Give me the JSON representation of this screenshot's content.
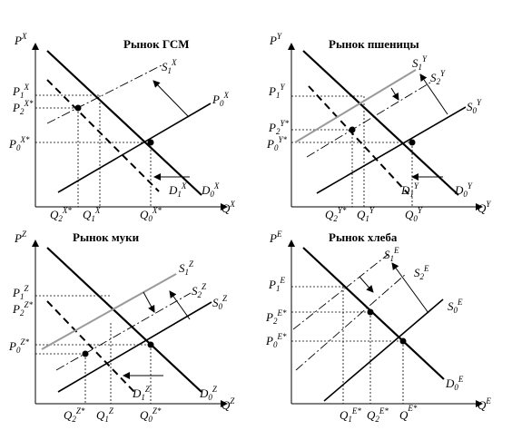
{
  "panels": [
    {
      "id": "x",
      "title": "Рынок ГСМ",
      "price_axis": {
        "text": "P",
        "sup": "X"
      },
      "qty_axis": {
        "text": "Q",
        "sup": "X"
      },
      "price_labels": [
        {
          "text": "P",
          "sub": "1",
          "sup": "X"
        },
        {
          "text": "P",
          "sub": "2",
          "sup": "X*"
        },
        {
          "text": "P",
          "sub": "0",
          "sup": "X*"
        }
      ],
      "qty_labels": [
        {
          "text": "Q",
          "sub": "2",
          "sup": "X*"
        },
        {
          "text": "Q",
          "sub": "1",
          "sup": "X"
        },
        {
          "text": "Q",
          "sub": "0",
          "sup": "X*"
        }
      ],
      "curve_labels": [
        {
          "text": "S",
          "sub": "1",
          "sup": "X"
        },
        {
          "text": "P",
          "sub": "0",
          "sup": "X"
        },
        {
          "text": "D",
          "sub": "1",
          "sup": "X"
        },
        {
          "text": "D",
          "sub": "0",
          "sup": "X"
        }
      ]
    },
    {
      "id": "y",
      "title": "Рынок пшеницы",
      "price_axis": {
        "text": "P",
        "sup": "Y"
      },
      "qty_axis": {
        "text": "Q",
        "sup": "Y"
      },
      "price_labels": [
        {
          "text": "P",
          "sub": "1",
          "sup": "Y"
        },
        {
          "text": "P",
          "sub": "2",
          "sup": "Y*"
        },
        {
          "text": "P",
          "sub": "0",
          "sup": "Y*"
        }
      ],
      "qty_labels": [
        {
          "text": "Q",
          "sub": "2",
          "sup": "Y*"
        },
        {
          "text": "Q",
          "sub": "1",
          "sup": "Y"
        },
        {
          "text": "Q",
          "sub": "0",
          "sup": "Y"
        }
      ],
      "curve_labels": [
        {
          "text": "S",
          "sub": "1",
          "sup": "Y"
        },
        {
          "text": "S",
          "sub": "2",
          "sup": "Y"
        },
        {
          "text": "S",
          "sub": "0",
          "sup": "Y"
        },
        {
          "text": "D",
          "sub": "1",
          "sup": "Y"
        },
        {
          "text": "D",
          "sub": "0",
          "sup": "Y"
        }
      ]
    },
    {
      "id": "z",
      "title": "Рынок муки",
      "price_axis": {
        "text": "P",
        "sup": "Z"
      },
      "qty_axis": {
        "text": "Q",
        "sup": "Z"
      },
      "price_labels": [
        {
          "text": "P",
          "sub": "1",
          "sup": "Z"
        },
        {
          "text": "P",
          "sub": "2",
          "sup": "Z*"
        },
        {
          "text": "P",
          "sub": "0",
          "sup": "Z*"
        }
      ],
      "qty_labels": [
        {
          "text": "Q",
          "sub": "2",
          "sup": "Z*"
        },
        {
          "text": "Q",
          "sub": "1",
          "sup": "Z"
        },
        {
          "text": "Q",
          "sub": "0",
          "sup": "Z*"
        }
      ],
      "curve_labels": [
        {
          "text": "S",
          "sub": "1",
          "sup": "Z"
        },
        {
          "text": "S",
          "sub": "2",
          "sup": "Z"
        },
        {
          "text": "S",
          "sub": "0",
          "sup": "Z"
        },
        {
          "text": "D",
          "sub": "1",
          "sup": "Z"
        },
        {
          "text": "D",
          "sub": "0",
          "sup": "Z"
        }
      ]
    },
    {
      "id": "e",
      "title": "Рынок хлеба",
      "price_axis": {
        "text": "P",
        "sup": "E"
      },
      "qty_axis": {
        "text": "Q",
        "sup": "E"
      },
      "price_labels": [
        {
          "text": "P",
          "sub": "1",
          "sup": "E"
        },
        {
          "text": "P",
          "sub": "2",
          "sup": "E*"
        },
        {
          "text": "P",
          "sub": "0",
          "sup": "E*"
        }
      ],
      "qty_labels": [
        {
          "text": "Q",
          "sub": "1",
          "sup": "E*"
        },
        {
          "text": "Q",
          "sub": "2",
          "sup": "E*"
        },
        {
          "text": "Q",
          "sub": "",
          "sup": "E*"
        }
      ],
      "curve_labels": [
        {
          "text": "S",
          "sub": "1",
          "sup": "E"
        },
        {
          "text": "S",
          "sub": "2",
          "sup": "E"
        },
        {
          "text": "S",
          "sub": "0",
          "sup": "E"
        },
        {
          "text": "D",
          "sub": "0",
          "sup": "E"
        }
      ]
    }
  ],
  "colors": {
    "ink": "#000000",
    "gray": "#9a9a9a"
  }
}
